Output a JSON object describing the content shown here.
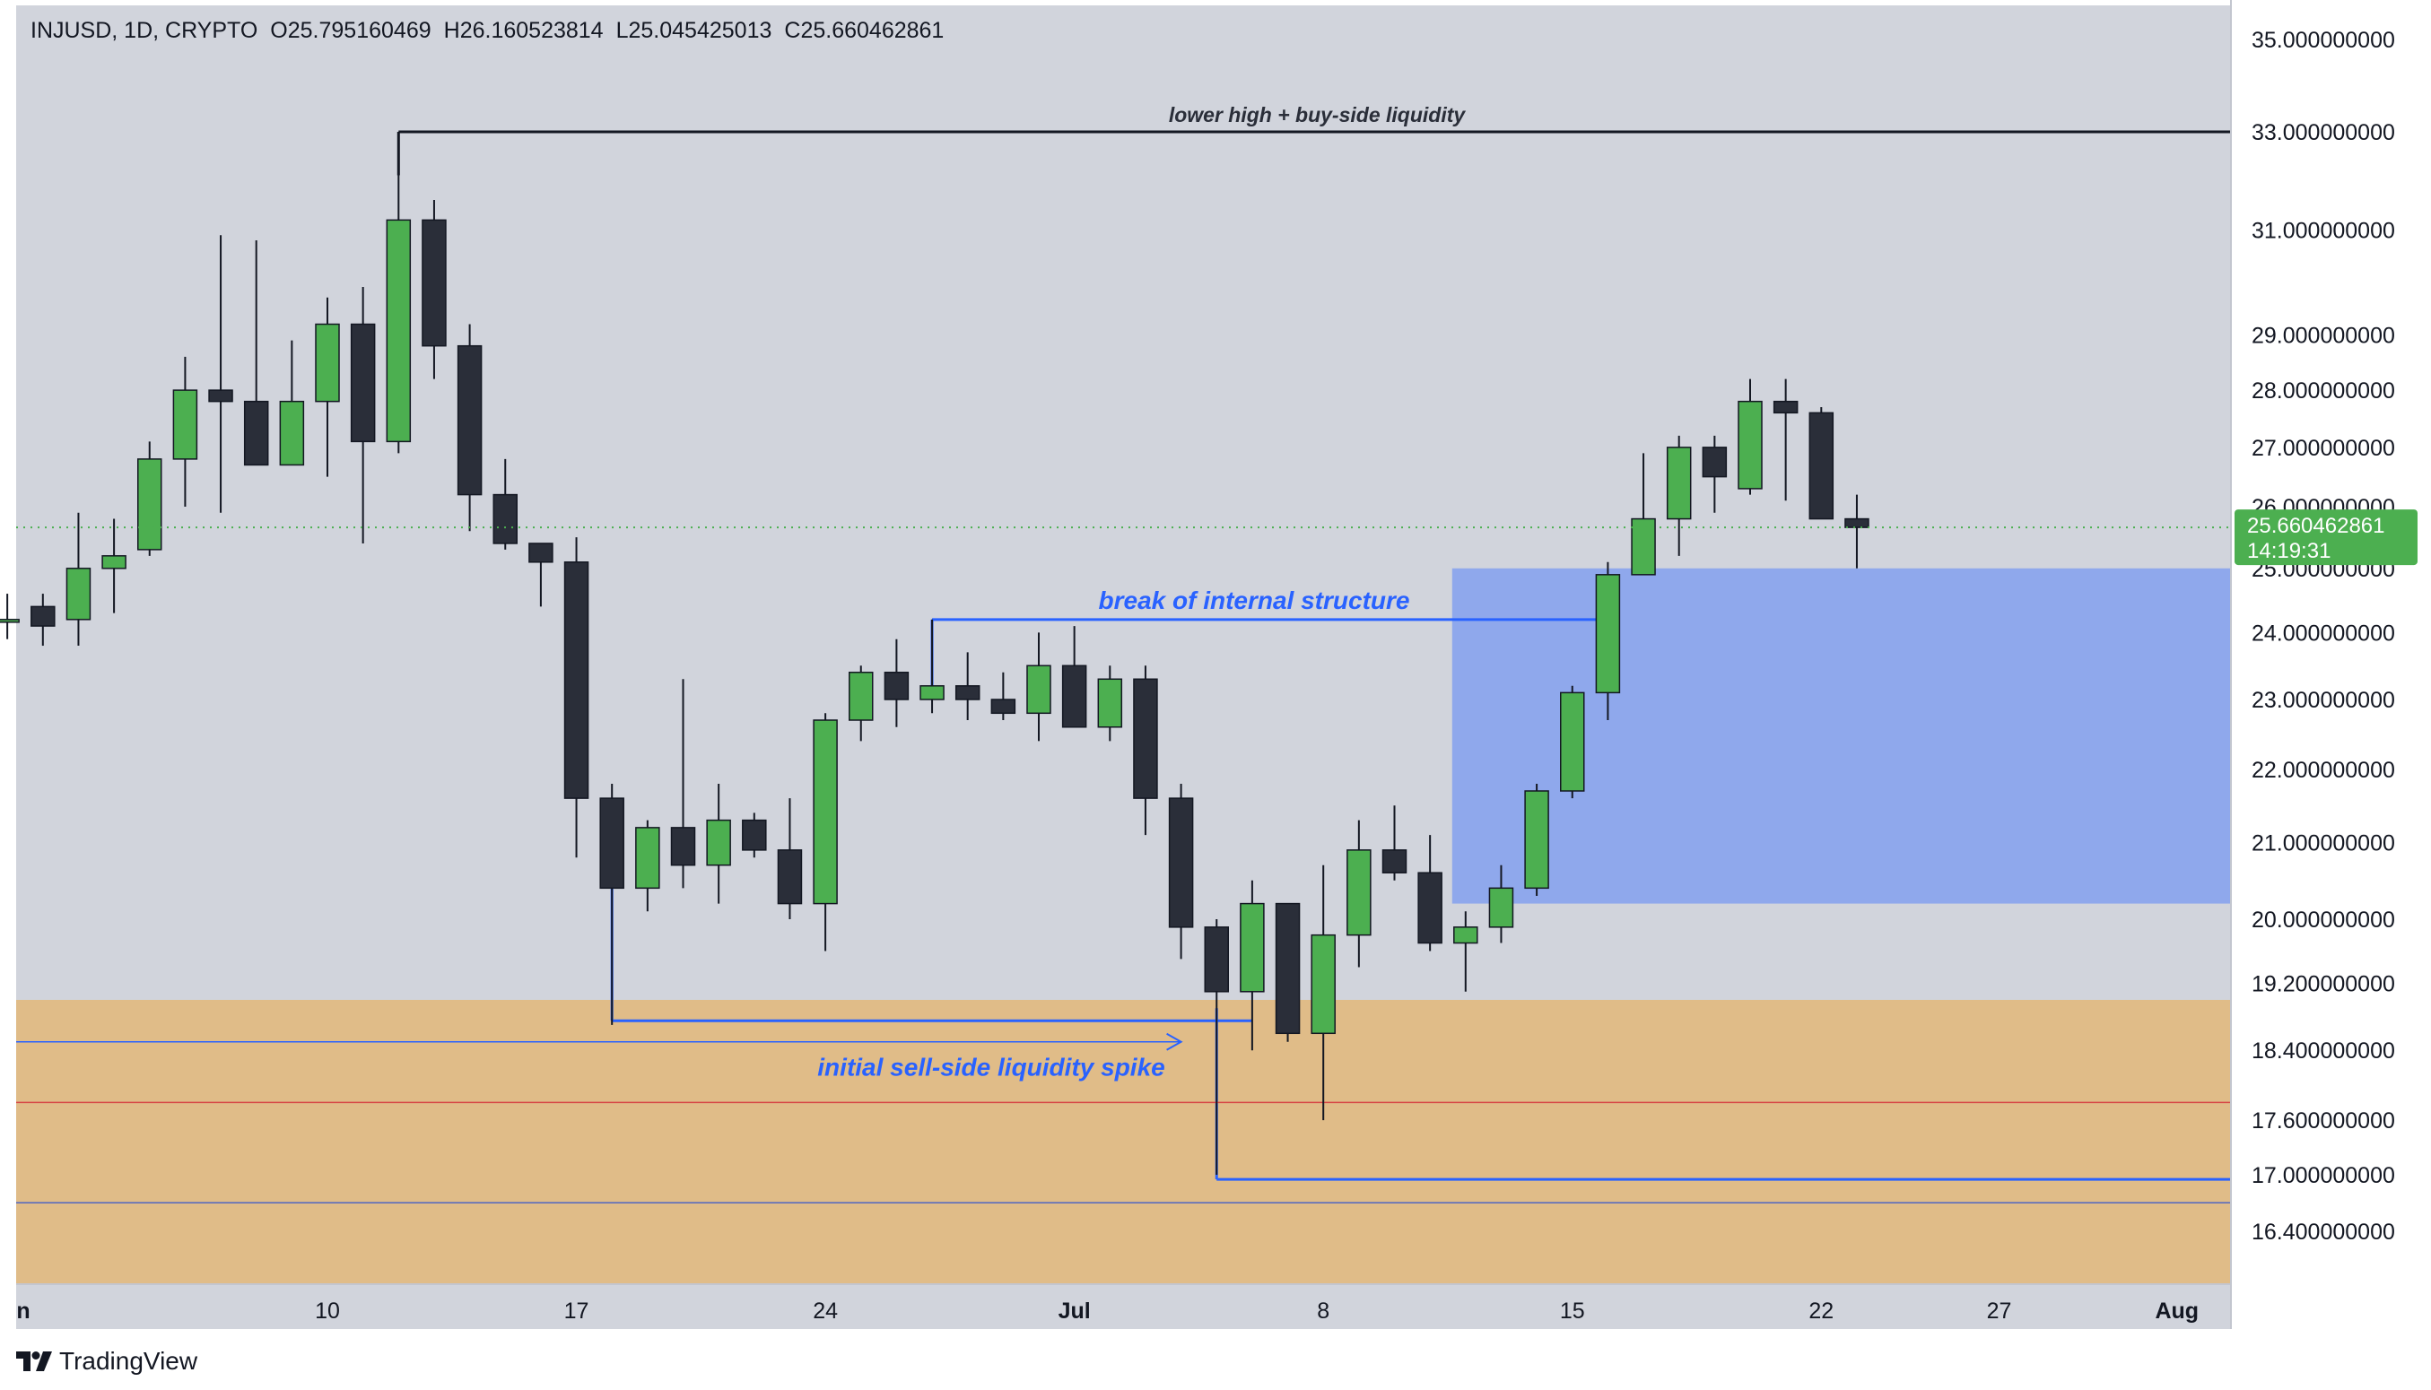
{
  "header": {
    "symbol": "INJUSD, 1D, CRYPTO",
    "open": "O25.795160469",
    "high": "H26.160523814",
    "low": "L25.045425013",
    "close": "C25.660462861"
  },
  "price_badge": {
    "price": "25.660462861",
    "countdown": "14:19:31",
    "color": "#4caf50"
  },
  "branding": {
    "name": "TradingView",
    "logo_icon": "tradingview-logo-icon"
  },
  "annotations": {
    "lower_high": "lower high + buy-side liquidity",
    "break_structure": "break of internal structure",
    "sell_side_spike": "initial sell-side liquidity spike"
  },
  "colors": {
    "background": "#d1d4dc",
    "bull": "#4caf50",
    "bear": "#2a2e39",
    "blue_zone": "#8fa8ec",
    "orange_zone": "#e0bc88",
    "annotation_blue": "#2962ff",
    "annotation_dark": "#131722"
  },
  "chart_data": {
    "type": "candlestick",
    "y_axis": {
      "scale": "log",
      "ticks": [
        35,
        33,
        31,
        29,
        28,
        27,
        26,
        25,
        24,
        23,
        22,
        21,
        20,
        19.2,
        18.4,
        17.6,
        17,
        16.4
      ],
      "tick_labels": [
        "35.000000000",
        "33.000000000",
        "31.000000000",
        "29.000000000",
        "28.000000000",
        "27.000000000",
        "26.000000000",
        "25.000000000",
        "24.000000000",
        "23.000000000",
        "22.000000000",
        "21.000000000",
        "20.000000000",
        "19.200000000",
        "18.400000000",
        "17.600000000",
        "17.000000000",
        "16.400000000"
      ],
      "range": [
        15.9,
        35.6
      ]
    },
    "x_axis": {
      "ticks": [
        {
          "date": "2024-06-10",
          "label": "10"
        },
        {
          "date": "2024-06-17",
          "label": "17"
        },
        {
          "date": "2024-06-24",
          "label": "24"
        },
        {
          "date": "2024-07-01",
          "label": "Jul"
        },
        {
          "date": "2024-07-08",
          "label": "8"
        },
        {
          "date": "2024-07-15",
          "label": "15"
        },
        {
          "date": "2024-07-22",
          "label": "22"
        },
        {
          "date": "2024-07-27",
          "label": "27"
        },
        {
          "date": "2024-08-01",
          "label": "Aug"
        }
      ],
      "partial_left_label": "n",
      "range": [
        "2024-06-01",
        "2024-08-01"
      ]
    },
    "candles": [
      {
        "date": "2024-06-01",
        "open": 24.2,
        "high": 24.6,
        "low": 23.9,
        "close": 24.2
      },
      {
        "date": "2024-06-02",
        "open": 24.4,
        "high": 24.6,
        "low": 23.8,
        "close": 24.1
      },
      {
        "date": "2024-06-03",
        "open": 24.2,
        "high": 25.9,
        "low": 23.8,
        "close": 25.0
      },
      {
        "date": "2024-06-04",
        "open": 25.0,
        "high": 25.8,
        "low": 24.3,
        "close": 25.2
      },
      {
        "date": "2024-06-05",
        "open": 25.3,
        "high": 27.1,
        "low": 25.2,
        "close": 26.8
      },
      {
        "date": "2024-06-06",
        "open": 26.8,
        "high": 28.6,
        "low": 26.0,
        "close": 28.0
      },
      {
        "date": "2024-06-07",
        "open": 28.0,
        "high": 30.9,
        "low": 25.9,
        "close": 27.8
      },
      {
        "date": "2024-06-08",
        "open": 27.8,
        "high": 30.8,
        "low": 26.7,
        "close": 26.7
      },
      {
        "date": "2024-06-09",
        "open": 26.7,
        "high": 28.9,
        "low": 26.7,
        "close": 27.8
      },
      {
        "date": "2024-06-10",
        "open": 27.8,
        "high": 29.7,
        "low": 26.5,
        "close": 29.2
      },
      {
        "date": "2024-06-11",
        "open": 29.2,
        "high": 29.9,
        "low": 25.4,
        "close": 27.1
      },
      {
        "date": "2024-06-12",
        "open": 27.1,
        "high": 33.0,
        "low": 26.9,
        "close": 31.2
      },
      {
        "date": "2024-06-13",
        "open": 31.2,
        "high": 31.6,
        "low": 28.2,
        "close": 28.8
      },
      {
        "date": "2024-06-14",
        "open": 28.8,
        "high": 29.2,
        "low": 25.6,
        "close": 26.2
      },
      {
        "date": "2024-06-15",
        "open": 26.2,
        "high": 26.8,
        "low": 25.3,
        "close": 25.4
      },
      {
        "date": "2024-06-16",
        "open": 25.4,
        "high": 25.4,
        "low": 24.4,
        "close": 25.1
      },
      {
        "date": "2024-06-17",
        "open": 25.1,
        "high": 25.5,
        "low": 20.8,
        "close": 21.6
      },
      {
        "date": "2024-06-18",
        "open": 21.6,
        "high": 21.8,
        "low": 18.7,
        "close": 20.4
      },
      {
        "date": "2024-06-19",
        "open": 20.4,
        "high": 21.3,
        "low": 20.1,
        "close": 21.2
      },
      {
        "date": "2024-06-20",
        "open": 21.2,
        "high": 23.3,
        "low": 20.4,
        "close": 20.7
      },
      {
        "date": "2024-06-21",
        "open": 20.7,
        "high": 21.8,
        "low": 20.2,
        "close": 21.3
      },
      {
        "date": "2024-06-22",
        "open": 21.3,
        "high": 21.4,
        "low": 20.8,
        "close": 20.9
      },
      {
        "date": "2024-06-23",
        "open": 20.9,
        "high": 21.6,
        "low": 20.0,
        "close": 20.2
      },
      {
        "date": "2024-06-24",
        "open": 20.2,
        "high": 22.8,
        "low": 19.6,
        "close": 22.7
      },
      {
        "date": "2024-06-25",
        "open": 22.7,
        "high": 23.5,
        "low": 22.4,
        "close": 23.4
      },
      {
        "date": "2024-06-26",
        "open": 23.4,
        "high": 23.9,
        "low": 22.6,
        "close": 23.0
      },
      {
        "date": "2024-06-27",
        "open": 23.0,
        "high": 24.2,
        "low": 22.8,
        "close": 23.2
      },
      {
        "date": "2024-06-28",
        "open": 23.2,
        "high": 23.7,
        "low": 22.7,
        "close": 23.0
      },
      {
        "date": "2024-06-29",
        "open": 23.0,
        "high": 23.4,
        "low": 22.7,
        "close": 22.8
      },
      {
        "date": "2024-06-30",
        "open": 22.8,
        "high": 24.0,
        "low": 22.4,
        "close": 23.5
      },
      {
        "date": "2024-07-01",
        "open": 23.5,
        "high": 24.1,
        "low": 22.6,
        "close": 22.6
      },
      {
        "date": "2024-07-02",
        "open": 22.6,
        "high": 23.5,
        "low": 22.4,
        "close": 23.3
      },
      {
        "date": "2024-07-03",
        "open": 23.3,
        "high": 23.5,
        "low": 21.1,
        "close": 21.6
      },
      {
        "date": "2024-07-04",
        "open": 21.6,
        "high": 21.8,
        "low": 19.5,
        "close": 19.9
      },
      {
        "date": "2024-07-05",
        "open": 19.9,
        "high": 20.0,
        "low": 17.0,
        "close": 19.1
      },
      {
        "date": "2024-07-06",
        "open": 19.1,
        "high": 20.5,
        "low": 18.4,
        "close": 20.2
      },
      {
        "date": "2024-07-07",
        "open": 20.2,
        "high": 20.2,
        "low": 18.5,
        "close": 18.6
      },
      {
        "date": "2024-07-08",
        "open": 18.6,
        "high": 20.7,
        "low": 17.6,
        "close": 19.8
      },
      {
        "date": "2024-07-09",
        "open": 19.8,
        "high": 21.3,
        "low": 19.4,
        "close": 20.9
      },
      {
        "date": "2024-07-10",
        "open": 20.9,
        "high": 21.5,
        "low": 20.5,
        "close": 20.6
      },
      {
        "date": "2024-07-11",
        "open": 20.6,
        "high": 21.1,
        "low": 19.6,
        "close": 19.7
      },
      {
        "date": "2024-07-12",
        "open": 19.7,
        "high": 20.1,
        "low": 19.1,
        "close": 19.9
      },
      {
        "date": "2024-07-13",
        "open": 19.9,
        "high": 20.7,
        "low": 19.7,
        "close": 20.4
      },
      {
        "date": "2024-07-14",
        "open": 20.4,
        "high": 21.8,
        "low": 20.3,
        "close": 21.7
      },
      {
        "date": "2024-07-15",
        "open": 21.7,
        "high": 23.2,
        "low": 21.6,
        "close": 23.1
      },
      {
        "date": "2024-07-16",
        "open": 23.1,
        "high": 25.1,
        "low": 22.7,
        "close": 24.9
      },
      {
        "date": "2024-07-17",
        "open": 24.9,
        "high": 26.9,
        "low": 24.9,
        "close": 25.8
      },
      {
        "date": "2024-07-18",
        "open": 25.8,
        "high": 27.2,
        "low": 25.2,
        "close": 27.0
      },
      {
        "date": "2024-07-19",
        "open": 27.0,
        "high": 27.2,
        "low": 25.9,
        "close": 26.5
      },
      {
        "date": "2024-07-20",
        "open": 26.3,
        "high": 28.2,
        "low": 26.2,
        "close": 27.8
      },
      {
        "date": "2024-07-21",
        "open": 27.8,
        "high": 28.2,
        "low": 26.1,
        "close": 27.6
      },
      {
        "date": "2024-07-22",
        "open": 27.6,
        "high": 27.7,
        "low": 25.8,
        "close": 25.8
      },
      {
        "date": "2024-07-23",
        "open": 25.8,
        "high": 26.2,
        "low": 25.0,
        "close": 25.66
      }
    ],
    "current_price": 25.660462861,
    "zones": [
      {
        "name": "blue-order-block",
        "from_date": "2024-07-12",
        "to": "right-edge",
        "low": 20.2,
        "high": 25.0
      },
      {
        "name": "orange-demand-zone",
        "from_date": "left-edge",
        "to": "right-edge",
        "low": 15.9,
        "high": 19.0
      }
    ],
    "lines": [
      {
        "name": "lower-high-line",
        "price": 33.0,
        "from_date": "2024-06-12",
        "to": "right-edge",
        "color": "#131722"
      },
      {
        "name": "break-structure-line",
        "price": 24.2,
        "from_date": "2024-06-27",
        "to_date": "2024-07-16",
        "color": "#2962ff"
      },
      {
        "name": "sell-side-sweep-line",
        "price": 16.95,
        "from_date": "2024-07-05",
        "to": "right-edge",
        "color": "#2962ff"
      },
      {
        "name": "sell-side-liquidity-line",
        "price": 18.75,
        "from_date": "2024-06-18",
        "to_date": "2024-07-06",
        "color": "#2962ff"
      },
      {
        "name": "sell-side-arrow-line",
        "price": 18.5,
        "from_date": "left-edge",
        "to_date": "2024-07-04",
        "color": "#2962ff"
      },
      {
        "name": "red-level-line",
        "price": 17.8,
        "from": "left-edge",
        "to": "right-edge",
        "color": "#d64545"
      },
      {
        "name": "purple-level-line",
        "price": 16.7,
        "from": "left-edge",
        "to": "right-edge",
        "color": "#5a6bbd"
      }
    ]
  }
}
